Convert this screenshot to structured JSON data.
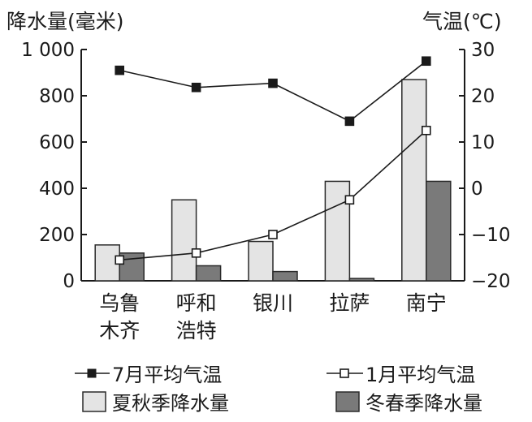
{
  "chart_data": {
    "type": "bar",
    "categories": [
      [
        "乌鲁",
        "木齐"
      ],
      [
        "呼和",
        "浩特"
      ],
      [
        "银川"
      ],
      [
        "拉萨"
      ],
      [
        "南宁"
      ]
    ],
    "left_axis": {
      "title": "降水量(毫米)",
      "ylim": [
        0,
        1000
      ],
      "ticks": [
        0,
        200,
        400,
        600,
        800,
        1000
      ],
      "tick_labels": [
        "0",
        "200",
        "400",
        "600",
        "800",
        "1 000"
      ]
    },
    "right_axis": {
      "title": "气温(℃)",
      "ylim": [
        -20,
        30
      ],
      "ticks": [
        -20,
        -10,
        0,
        10,
        20,
        30
      ],
      "tick_labels": [
        "−20",
        "−10",
        "0",
        "10",
        "20",
        "30"
      ]
    },
    "bar_series": [
      {
        "name": "夏秋季降水量",
        "color": "#e4e4e4",
        "values": [
          155,
          350,
          170,
          430,
          870
        ]
      },
      {
        "name": "冬春季降水量",
        "color": "#7a7a7a",
        "values": [
          120,
          65,
          40,
          10,
          430
        ]
      }
    ],
    "line_series": [
      {
        "name": "7月平均气温",
        "marker": "filled-square",
        "values": [
          25.5,
          21.8,
          22.7,
          14.5,
          27.5
        ]
      },
      {
        "name": "1月平均气温",
        "marker": "open-square",
        "values": [
          -15.5,
          -14,
          -10,
          -2.5,
          12.5
        ]
      }
    ],
    "legend": {
      "placement": "bottom",
      "line_labels": [
        "7月平均气温",
        "1月平均气温"
      ],
      "bar_labels": [
        "夏秋季降水量",
        "冬春季降水量"
      ]
    }
  }
}
